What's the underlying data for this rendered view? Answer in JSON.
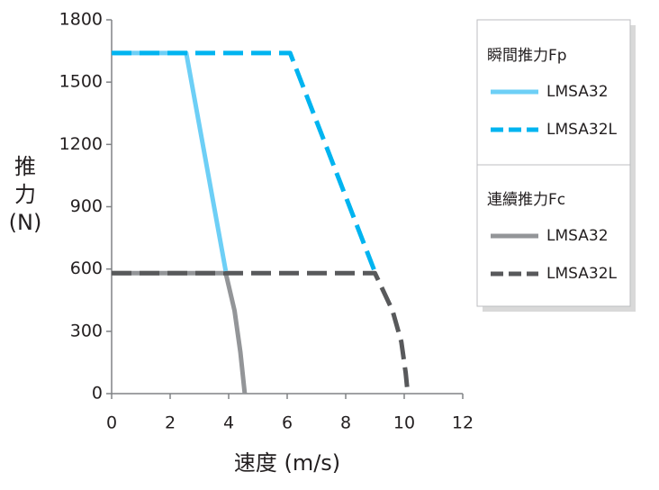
{
  "chart_data": {
    "type": "line",
    "x_label": "速度 (m/s)",
    "y_label": [
      "推",
      "力",
      "(N)"
    ],
    "xlim": [
      0,
      12
    ],
    "xticks": [
      0,
      2,
      4,
      6,
      8,
      10,
      12
    ],
    "ylim": [
      0,
      1800
    ],
    "yticks": [
      0,
      300,
      600,
      900,
      1200,
      1500,
      1800
    ],
    "grid": false,
    "legend_groups": [
      "瞬間推力Fp",
      "連續推力Fc"
    ],
    "series": [
      {
        "name": "LMSA32",
        "group": 0,
        "color": "#6dcff6",
        "dashed": false,
        "x": [
          0,
          2.55,
          3.9
        ],
        "values": [
          1640,
          1640,
          590
        ]
      },
      {
        "name": "LMSA32L",
        "group": 0,
        "color": "#00b4f0",
        "dashed": true,
        "x": [
          0,
          6.1,
          9.0
        ],
        "values": [
          1640,
          1640,
          585
        ]
      },
      {
        "name": "LMSA32",
        "group": 1,
        "color": "#939598",
        "dashed": false,
        "x": [
          0,
          3.9,
          4.2,
          4.4,
          4.55
        ],
        "values": [
          580,
          580,
          400,
          200,
          0
        ]
      },
      {
        "name": "LMSA32L",
        "group": 1,
        "color": "#58595b",
        "dashed": true,
        "x": [
          0,
          9.0,
          9.6,
          9.9,
          10.05,
          10.12
        ],
        "values": [
          580,
          580,
          400,
          250,
          100,
          0
        ]
      }
    ]
  }
}
